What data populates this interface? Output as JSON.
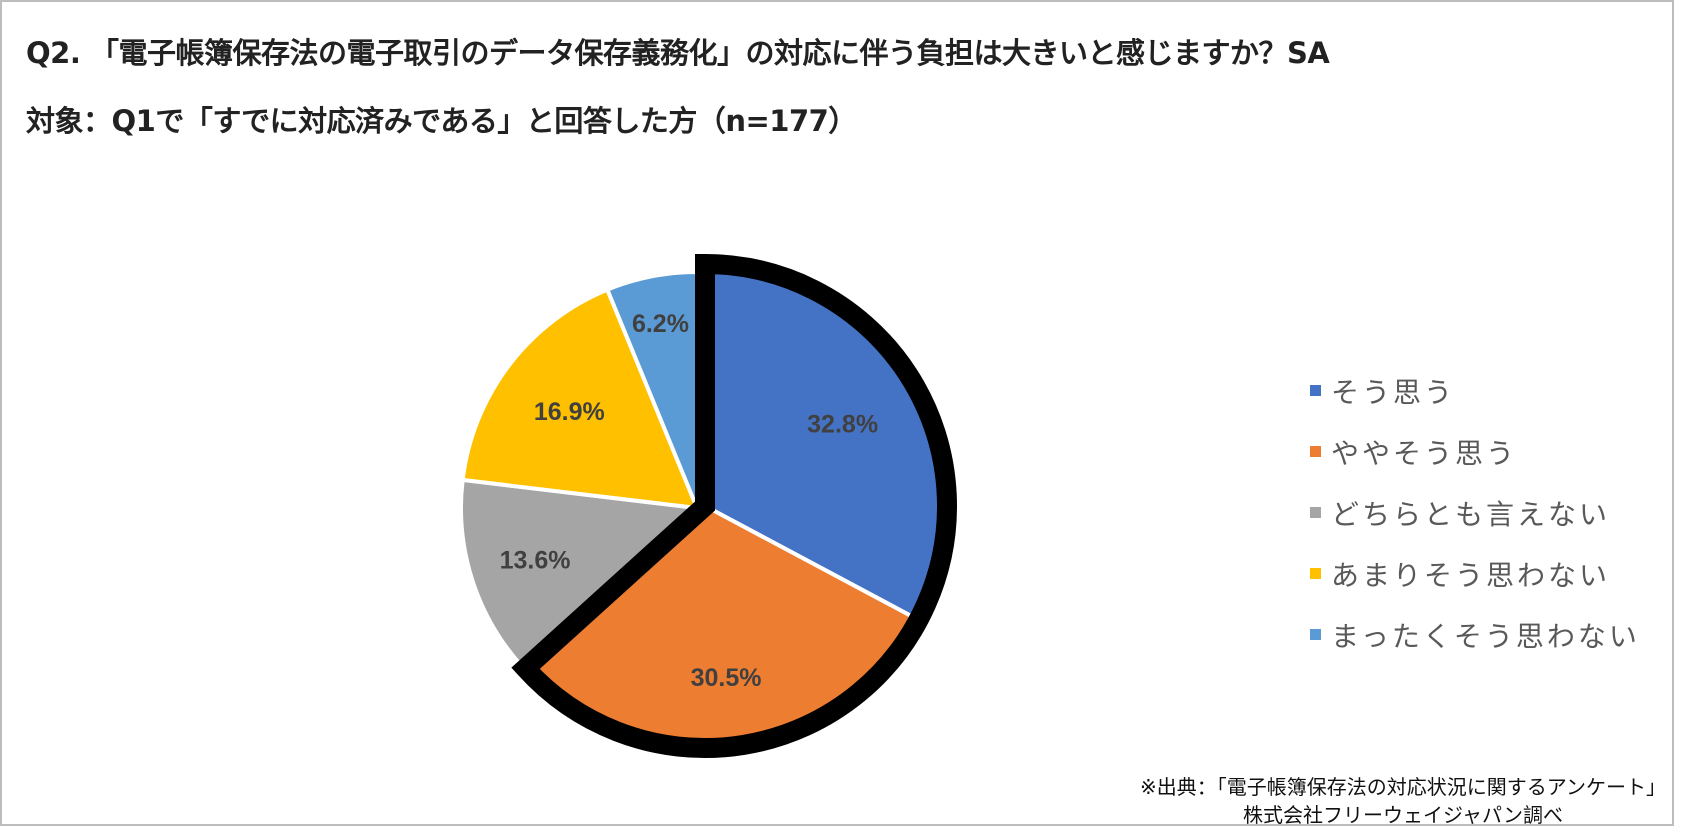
{
  "header": {
    "question": "Q2. 「電子帳簿保存法の電子取引のデータ保存義務化」の対応に伴う負担は大きいと感じますか？SA",
    "target": "対象：Q1で「すでに対応済みである」と回答した方（n=177）"
  },
  "legend": {
    "items": [
      {
        "label": "そう思う",
        "color": "#4472C4"
      },
      {
        "label": "ややそう思う",
        "color": "#ED7D31"
      },
      {
        "label": "どちらとも言えない",
        "color": "#A5A5A5"
      },
      {
        "label": "あまりそう思わない",
        "color": "#FFC000"
      },
      {
        "label": "まったくそう思わない",
        "color": "#5B9BD5"
      }
    ]
  },
  "source": {
    "line1": "※出典：「電子帳簿保存法の対応状況に関するアンケート」",
    "line2": "株式会社フリーウェイジャパン調べ"
  },
  "chart_data": {
    "type": "pie",
    "title": "Q2. 「電子帳簿保存法の電子取引のデータ保存義務化」の対応に伴う負担は大きいと感じますか？SA",
    "subtitle": "対象：Q1で「すでに対応済みである」と回答した方（n=177）",
    "n": 177,
    "categories": [
      "そう思う",
      "ややそう思う",
      "どちらとも言えない",
      "あまりそう思わない",
      "まったくそう思わない"
    ],
    "values": [
      32.8,
      30.5,
      13.6,
      16.9,
      6.2
    ],
    "labels": [
      "32.8%",
      "30.5%",
      "13.6%",
      "16.9%",
      "6.2%"
    ],
    "colors": [
      "#4472C4",
      "#ED7D31",
      "#A5A5A5",
      "#FFC000",
      "#5B9BD5"
    ],
    "start_angle": "12 o'clock, clockwise",
    "highlighted": [
      "そう思う",
      "ややそう思う"
    ],
    "highlight_total_percent": 63.3,
    "legend_position": "right",
    "units": "%"
  }
}
